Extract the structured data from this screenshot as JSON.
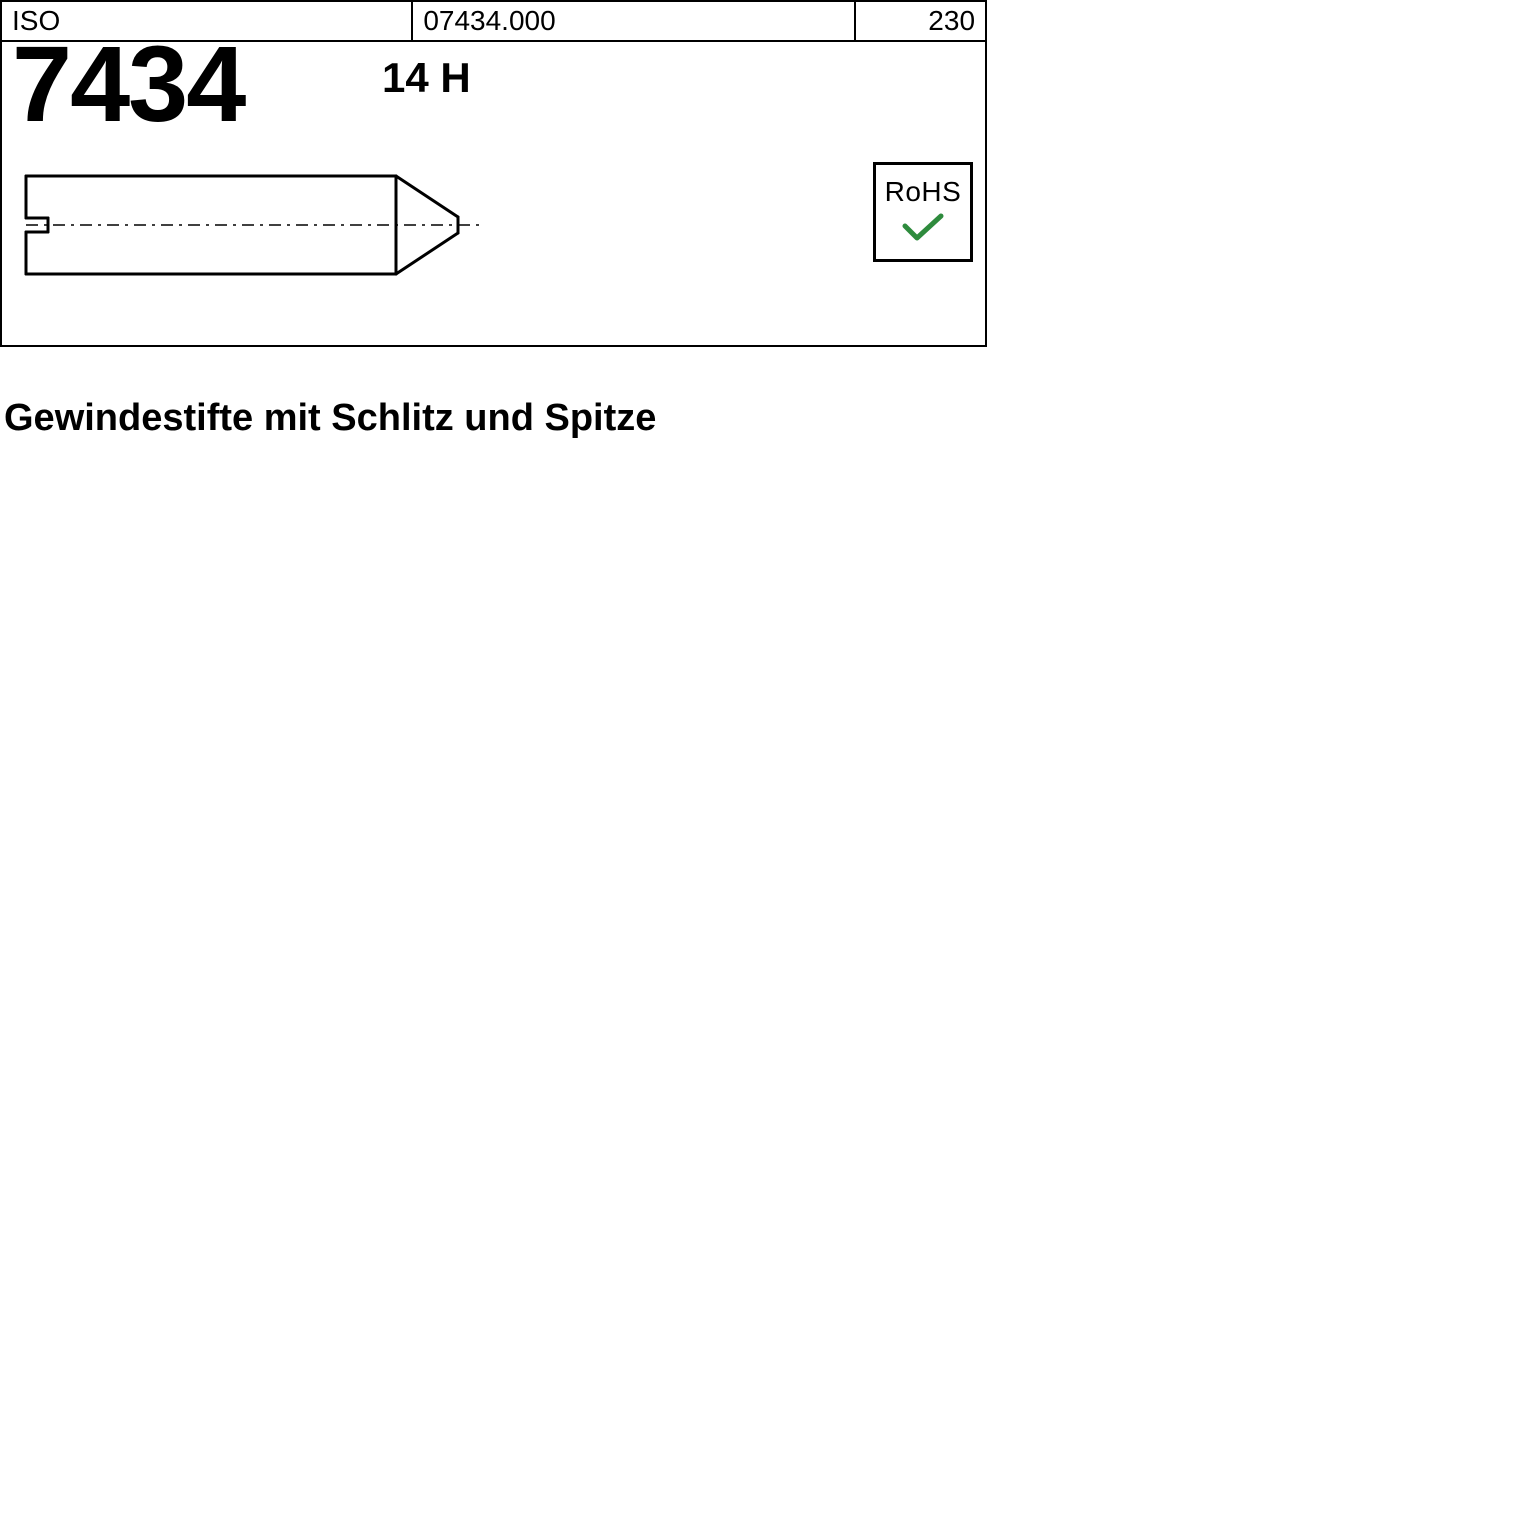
{
  "header": {
    "standard_label": "ISO",
    "part_code": "07434.000",
    "ref_number": "230"
  },
  "main": {
    "standard_number": "7434",
    "grade": "14 H"
  },
  "rohs": {
    "label": "RoHS",
    "check_color": "#2e8b3d"
  },
  "description": "Gewindestifte mit Schlitz und Spitze",
  "drawing": {
    "stroke": "#000000",
    "stroke_width": 3,
    "body_width": 370,
    "body_height": 98,
    "tip_width": 80,
    "slot_depth": 22,
    "slot_gap": 14,
    "centerline_dash": "12 6 3 6"
  }
}
